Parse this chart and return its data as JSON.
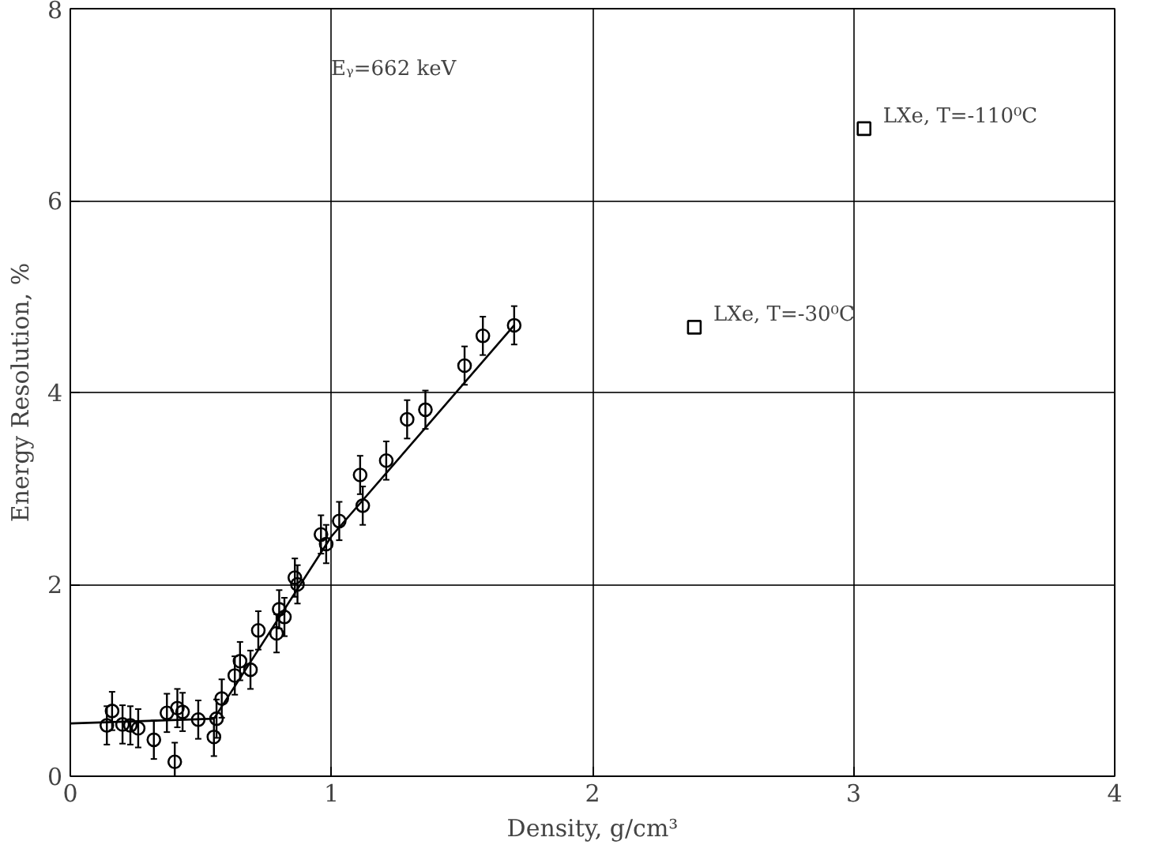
{
  "chart_data": {
    "type": "scatter",
    "xlabel": "Density, g/cm³",
    "ylabel": "Energy Resolution, %",
    "xlim": [
      0,
      4
    ],
    "ylim": [
      0,
      8
    ],
    "xticks": [
      0,
      1,
      2,
      3,
      4
    ],
    "yticks": [
      0,
      2,
      4,
      6,
      8
    ],
    "grid": true,
    "series": [
      {
        "marker": "circle",
        "color": "#000000",
        "x": [
          0.14,
          0.16,
          0.2,
          0.23,
          0.26,
          0.32,
          0.37,
          0.4,
          0.41,
          0.43,
          0.49,
          0.55,
          0.56,
          0.58,
          0.63,
          0.65,
          0.69,
          0.72,
          0.79,
          0.8,
          0.82,
          0.86,
          0.87,
          0.96,
          0.98,
          1.03,
          1.11,
          1.12,
          1.21,
          1.29,
          1.36,
          1.51,
          1.58,
          1.7
        ],
        "values": [
          0.53,
          0.68,
          0.54,
          0.53,
          0.5,
          0.38,
          0.66,
          0.15,
          0.71,
          0.67,
          0.59,
          0.41,
          0.6,
          0.81,
          1.05,
          1.2,
          1.11,
          1.52,
          1.49,
          1.74,
          1.66,
          2.07,
          2.0,
          2.52,
          2.42,
          2.66,
          3.14,
          2.82,
          3.29,
          3.72,
          3.82,
          4.28,
          4.59,
          4.7
        ],
        "errors": [
          0.2,
          0.2,
          0.2,
          0.2,
          0.2,
          0.2,
          0.2,
          0.2,
          0.2,
          0.2,
          0.2,
          0.2,
          0.2,
          0.2,
          0.2,
          0.2,
          0.2,
          0.2,
          0.2,
          0.2,
          0.2,
          0.2,
          0.2,
          0.2,
          0.2,
          0.2,
          0.2,
          0.2,
          0.2,
          0.2,
          0.2,
          0.2,
          0.2,
          0.2
        ]
      },
      {
        "type": "line",
        "marker": "none",
        "line_style": "solid",
        "color": "#000000",
        "x": [
          0.0,
          0.55,
          1.0,
          1.7
        ],
        "values": [
          0.55,
          0.6,
          2.5,
          4.7
        ]
      },
      {
        "marker": "square",
        "color": "#000000",
        "x": [
          2.39,
          3.04
        ],
        "values": [
          4.68,
          6.75
        ]
      }
    ],
    "annotations": [
      "Eᵧ=662 keV",
      {
        "text": "LXe, T=-30⁰C",
        "x": 2.39,
        "y": 4.68
      },
      {
        "text": "LXe, T=-110⁰C",
        "x": 3.04,
        "y": 6.75
      }
    ]
  }
}
